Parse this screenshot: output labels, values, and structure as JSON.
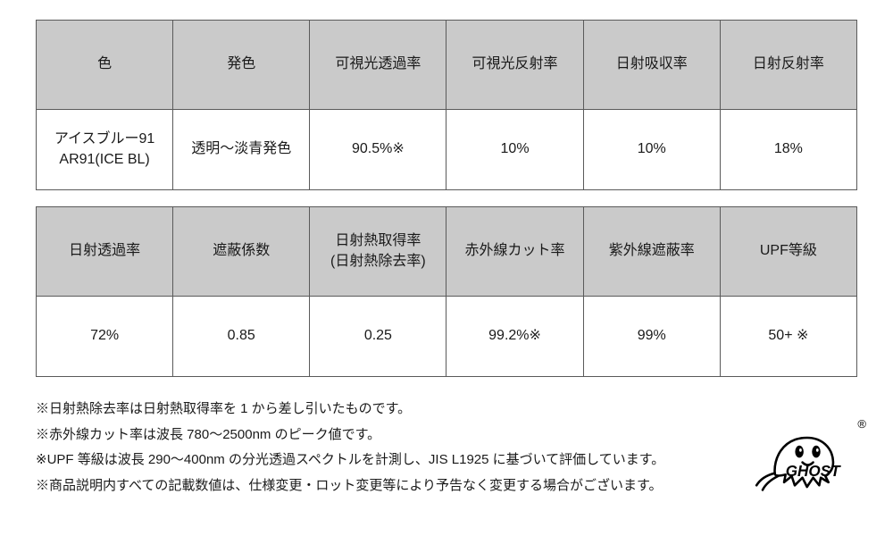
{
  "table1": {
    "headers": [
      "色",
      "発色",
      "可視光透過率",
      "可視光反射率",
      "日射吸収率",
      "日射反射率"
    ],
    "row": [
      "アイスブルー91\nAR91(ICE BL)",
      "透明～淡青発色",
      "90.5%※",
      "10%",
      "10%",
      "18%"
    ]
  },
  "table2": {
    "headers": [
      "日射透過率",
      "遮蔽係数",
      "日射熱取得率\n(日射熱除去率)",
      "赤外線カット率",
      "紫外線遮蔽率",
      "UPF等級"
    ],
    "row": [
      "72%",
      "0.85",
      "0.25",
      "99.2%※",
      "99%",
      "50+ ※"
    ]
  },
  "notes": [
    "※日射熱除去率は日射熱取得率を 1 から差し引いたものです。",
    "※赤外線カット率は波長 780～2500nm のピーク値です。",
    "※UPF 等級は波長 290～400nm の分光透過スペクトルを計測し、JIS L1925 に基づいて評価しています。",
    "※商品説明内すべての記載数値は、仕様変更・ロット変更等により予告なく変更する場合がございます。"
  ],
  "logo": {
    "text": "GHOST",
    "reg": "®"
  },
  "style": {
    "header_bg": "#cacaca",
    "cell_bg": "#ffffff",
    "border_color": "#5a5a5a",
    "text_color": "#1a1a1a",
    "font_size_cell": 16,
    "font_size_note": 15,
    "header_row_height": 100,
    "data_row_height": 90,
    "cols": 6
  }
}
